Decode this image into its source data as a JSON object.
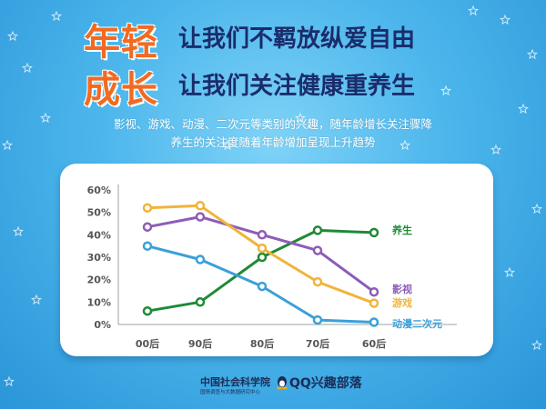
{
  "headline": {
    "line1_big": "年轻",
    "line1_rest": "让我们不羁放纵爱自由",
    "line2_big": "成长",
    "line2_rest": "让我们关注健康重养生"
  },
  "subtitle": {
    "line1": "影视、游戏、动漫、二次元等类别的兴趣，随年龄增长关注骤降",
    "line2": "养生的关注度随着年龄增加呈现上升趋势"
  },
  "footer": {
    "org_name": "中国社会科学院",
    "org_sub": "国情调查与大数据研究中心",
    "brand": "QQ兴趣部落"
  },
  "chart_data": {
    "type": "line",
    "categories": [
      "00后",
      "90后",
      "80后",
      "70后",
      "60后"
    ],
    "y_ticks": [
      "0%",
      "10%",
      "20%",
      "30%",
      "40%",
      "50%",
      "60%"
    ],
    "ylim": [
      0,
      60
    ],
    "grid": false,
    "series": [
      {
        "name": "养生",
        "color": "#1e8a36",
        "values": [
          6,
          10,
          30,
          42,
          41
        ]
      },
      {
        "name": "影视",
        "color": "#8e5cb5",
        "values": [
          43.5,
          48,
          40,
          33,
          14.5
        ]
      },
      {
        "name": "游戏",
        "color": "#f0b43a",
        "values": [
          52,
          53,
          34,
          19,
          9.5
        ]
      },
      {
        "name": "动漫二次元",
        "color": "#3aa0d9",
        "values": [
          35,
          29,
          17,
          2,
          1
        ]
      }
    ]
  }
}
